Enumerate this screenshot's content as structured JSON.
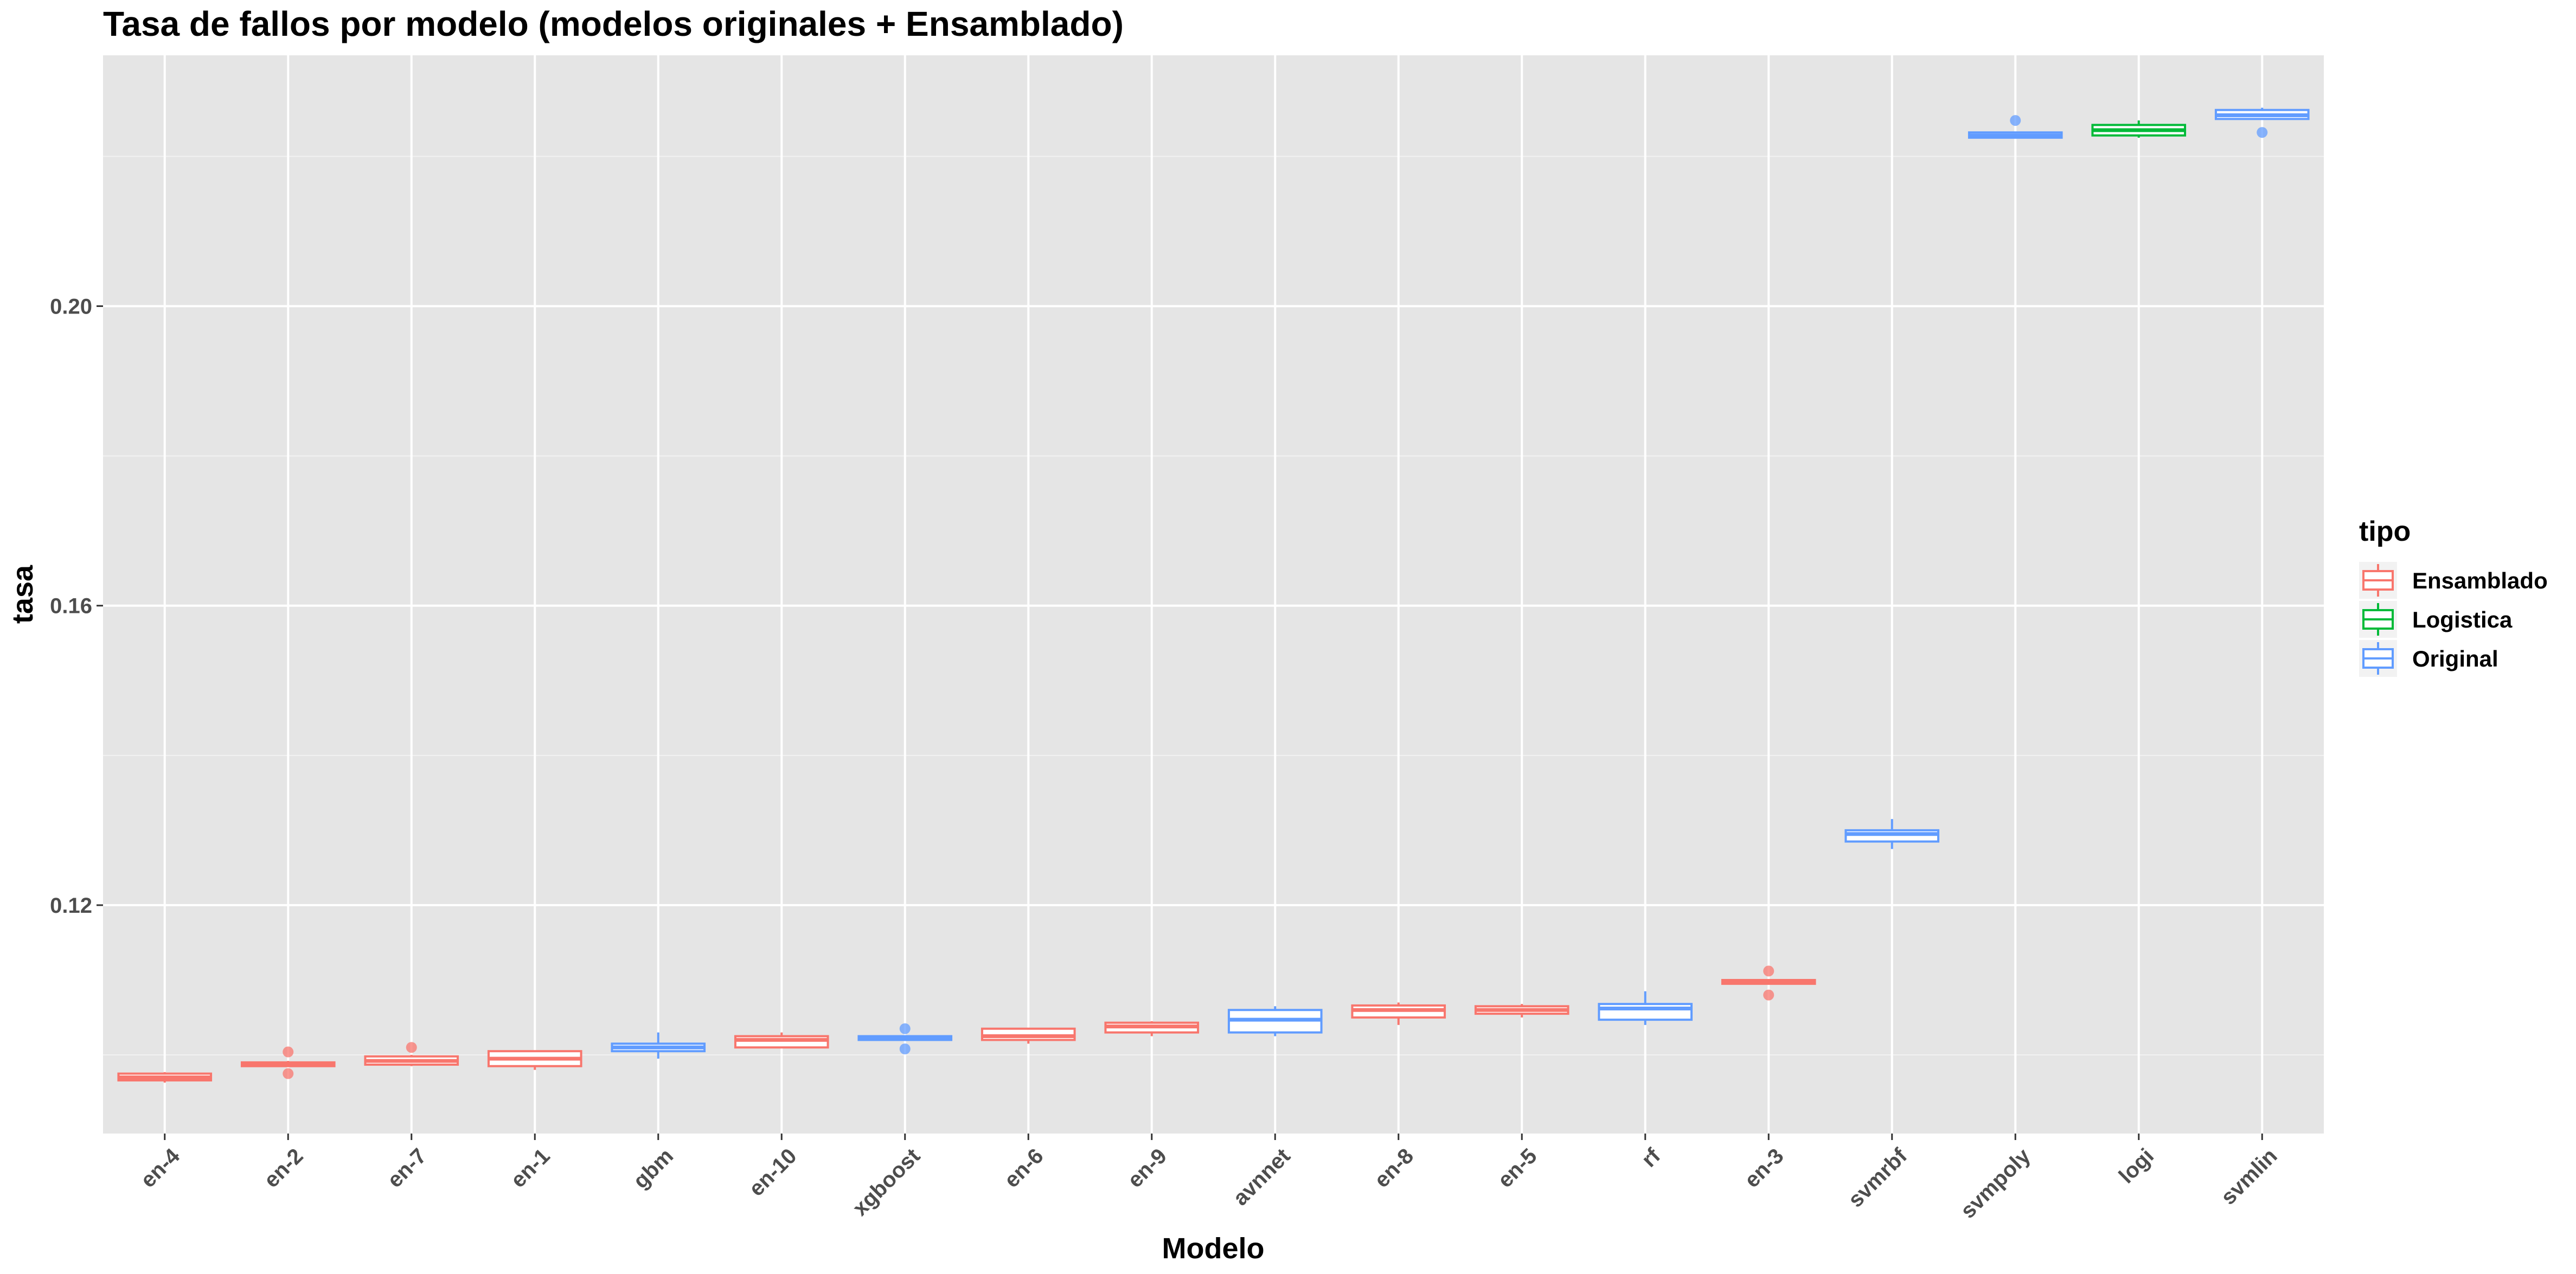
{
  "chart_data": {
    "type": "boxplot",
    "title": "Tasa de fallos por modelo (modelos originales + Ensamblado)",
    "xlabel": "Modelo",
    "ylabel": "tasa",
    "ylim": [
      0.0895,
      0.2335
    ],
    "yticks": [
      0.12,
      0.16,
      0.2
    ],
    "ytick_labels": [
      "0.12",
      "0.16",
      "0.20"
    ],
    "grid": true,
    "legend": {
      "title": "tipo",
      "position": "right",
      "entries": [
        {
          "label": "Ensamblado",
          "color": "#F8766D"
        },
        {
          "label": "Logistica",
          "color": "#00BA38"
        },
        {
          "label": "Original",
          "color": "#619CFF"
        }
      ]
    },
    "categories": [
      "en-4",
      "en-2",
      "en-7",
      "en-1",
      "gbm",
      "en-10",
      "xgboost",
      "en-6",
      "en-9",
      "avnnet",
      "en-8",
      "en-5",
      "rf",
      "en-3",
      "svmrbf",
      "svmpoly",
      "logi",
      "svmlin"
    ],
    "boxes": [
      {
        "model": "en-4",
        "tipo": "Ensamblado",
        "min": 0.0963,
        "q1": 0.0966,
        "median": 0.097,
        "q3": 0.0975,
        "max": 0.0977,
        "outliers": []
      },
      {
        "model": "en-2",
        "tipo": "Ensamblado",
        "min": 0.0985,
        "q1": 0.0985,
        "median": 0.0987,
        "q3": 0.099,
        "max": 0.0992,
        "outliers": [
          0.1004,
          0.0975
        ]
      },
      {
        "model": "en-7",
        "tipo": "Ensamblado",
        "min": 0.0985,
        "q1": 0.0987,
        "median": 0.0992,
        "q3": 0.0998,
        "max": 0.1,
        "outliers": [
          0.101
        ]
      },
      {
        "model": "en-1",
        "tipo": "Ensamblado",
        "min": 0.098,
        "q1": 0.0985,
        "median": 0.0995,
        "q3": 0.1005,
        "max": 0.1005,
        "outliers": []
      },
      {
        "model": "gbm",
        "tipo": "Original",
        "min": 0.0995,
        "q1": 0.1005,
        "median": 0.101,
        "q3": 0.1015,
        "max": 0.103,
        "outliers": []
      },
      {
        "model": "en-10",
        "tipo": "Ensamblado",
        "min": 0.101,
        "q1": 0.101,
        "median": 0.102,
        "q3": 0.1025,
        "max": 0.103,
        "outliers": []
      },
      {
        "model": "xgboost",
        "tipo": "Original",
        "min": 0.102,
        "q1": 0.102,
        "median": 0.1022,
        "q3": 0.1025,
        "max": 0.1025,
        "outliers": [
          0.1035,
          0.1008
        ]
      },
      {
        "model": "en-6",
        "tipo": "Ensamblado",
        "min": 0.1015,
        "q1": 0.102,
        "median": 0.1025,
        "q3": 0.1035,
        "max": 0.1035,
        "outliers": []
      },
      {
        "model": "en-9",
        "tipo": "Ensamblado",
        "min": 0.1025,
        "q1": 0.103,
        "median": 0.1038,
        "q3": 0.1043,
        "max": 0.1045,
        "outliers": []
      },
      {
        "model": "avnnet",
        "tipo": "Original",
        "min": 0.1025,
        "q1": 0.103,
        "median": 0.1047,
        "q3": 0.106,
        "max": 0.1065,
        "outliers": []
      },
      {
        "model": "en-8",
        "tipo": "Ensamblado",
        "min": 0.104,
        "q1": 0.105,
        "median": 0.106,
        "q3": 0.1066,
        "max": 0.107,
        "outliers": []
      },
      {
        "model": "en-5",
        "tipo": "Ensamblado",
        "min": 0.105,
        "q1": 0.1055,
        "median": 0.106,
        "q3": 0.1065,
        "max": 0.1068,
        "outliers": []
      },
      {
        "model": "rf",
        "tipo": "Original",
        "min": 0.104,
        "q1": 0.1047,
        "median": 0.1062,
        "q3": 0.1068,
        "max": 0.1085,
        "outliers": []
      },
      {
        "model": "en-3",
        "tipo": "Ensamblado",
        "min": 0.1095,
        "q1": 0.1095,
        "median": 0.1097,
        "q3": 0.11,
        "max": 0.11,
        "outliers": [
          0.1112,
          0.108
        ]
      },
      {
        "model": "svmrbf",
        "tipo": "Original",
        "min": 0.1275,
        "q1": 0.1285,
        "median": 0.1295,
        "q3": 0.13,
        "max": 0.1315,
        "outliers": []
      },
      {
        "model": "svmpoly",
        "tipo": "Original",
        "min": 0.2225,
        "q1": 0.2225,
        "median": 0.2228,
        "q3": 0.2232,
        "max": 0.2232,
        "outliers": [
          0.2248
        ]
      },
      {
        "model": "logi",
        "tipo": "Logistica",
        "min": 0.2225,
        "q1": 0.2228,
        "median": 0.2235,
        "q3": 0.2242,
        "max": 0.2248,
        "outliers": []
      },
      {
        "model": "svmlin",
        "tipo": "Original",
        "min": 0.225,
        "q1": 0.225,
        "median": 0.2255,
        "q3": 0.2262,
        "max": 0.2265,
        "outliers": [
          0.2232
        ]
      }
    ]
  }
}
